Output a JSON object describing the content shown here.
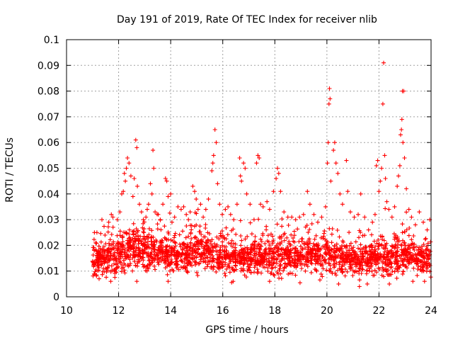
{
  "chart_data": {
    "type": "scatter",
    "title": "Day 191 of 2019, Rate Of TEC Index for receiver nlib",
    "xlabel": "GPS time / hours",
    "ylabel": "ROTI / TECUs",
    "xlim": [
      10,
      24
    ],
    "ylim": [
      0,
      0.1
    ],
    "xticks": [
      10,
      12,
      14,
      16,
      18,
      20,
      22,
      24
    ],
    "yticks": [
      0,
      0.01,
      0.02,
      0.03,
      0.04,
      0.05,
      0.06,
      0.07,
      0.08,
      0.09,
      0.1
    ],
    "grid": true,
    "marker": "+",
    "color": "#ff0000",
    "series": [
      {
        "name": "ROTI",
        "baseline_profile": [
          [
            11.0,
            0.014,
            0.005
          ],
          [
            11.5,
            0.015,
            0.005
          ],
          [
            12.0,
            0.016,
            0.006
          ],
          [
            12.5,
            0.019,
            0.008
          ],
          [
            13.0,
            0.018,
            0.007
          ],
          [
            13.5,
            0.017,
            0.006
          ],
          [
            14.0,
            0.016,
            0.005
          ],
          [
            14.5,
            0.017,
            0.006
          ],
          [
            15.0,
            0.018,
            0.006
          ],
          [
            15.5,
            0.017,
            0.006
          ],
          [
            16.0,
            0.016,
            0.006
          ],
          [
            16.5,
            0.015,
            0.005
          ],
          [
            17.0,
            0.015,
            0.005
          ],
          [
            17.5,
            0.016,
            0.005
          ],
          [
            18.0,
            0.016,
            0.006
          ],
          [
            18.5,
            0.016,
            0.006
          ],
          [
            19.0,
            0.016,
            0.006
          ],
          [
            19.5,
            0.017,
            0.006
          ],
          [
            20.0,
            0.017,
            0.007
          ],
          [
            20.5,
            0.016,
            0.006
          ],
          [
            21.0,
            0.014,
            0.005
          ],
          [
            21.5,
            0.014,
            0.005
          ],
          [
            22.0,
            0.015,
            0.006
          ],
          [
            22.5,
            0.015,
            0.006
          ],
          [
            23.0,
            0.016,
            0.006
          ],
          [
            23.5,
            0.015,
            0.005
          ],
          [
            24.0,
            0.015,
            0.005
          ]
        ],
        "points": [
          [
            11.07,
            0.025
          ],
          [
            11.12,
            0.021
          ],
          [
            11.36,
            0.03
          ],
          [
            11.48,
            0.024
          ],
          [
            11.62,
            0.029
          ],
          [
            11.72,
            0.032
          ],
          [
            11.78,
            0.031
          ],
          [
            11.83,
            0.019
          ],
          [
            11.95,
            0.03
          ],
          [
            12.05,
            0.033
          ],
          [
            12.12,
            0.04
          ],
          [
            12.18,
            0.041
          ],
          [
            12.22,
            0.048
          ],
          [
            12.26,
            0.045
          ],
          [
            12.3,
            0.05
          ],
          [
            12.34,
            0.054
          ],
          [
            12.4,
            0.052
          ],
          [
            12.47,
            0.047
          ],
          [
            12.55,
            0.039
          ],
          [
            12.6,
            0.046
          ],
          [
            12.66,
            0.061
          ],
          [
            12.7,
            0.058
          ],
          [
            12.72,
            0.043
          ],
          [
            12.8,
            0.036
          ],
          [
            12.88,
            0.033
          ],
          [
            12.95,
            0.03
          ],
          [
            13.05,
            0.031
          ],
          [
            13.1,
            0.034
          ],
          [
            13.15,
            0.036
          ],
          [
            13.22,
            0.044
          ],
          [
            13.28,
            0.04
          ],
          [
            13.32,
            0.057
          ],
          [
            13.35,
            0.05
          ],
          [
            13.4,
            0.033
          ],
          [
            13.52,
            0.032
          ],
          [
            13.6,
            0.03
          ],
          [
            13.7,
            0.036
          ],
          [
            13.8,
            0.046
          ],
          [
            13.85,
            0.045
          ],
          [
            13.9,
            0.039
          ],
          [
            14.0,
            0.04
          ],
          [
            14.05,
            0.029
          ],
          [
            14.15,
            0.031
          ],
          [
            14.28,
            0.035
          ],
          [
            14.4,
            0.034
          ],
          [
            14.5,
            0.035
          ],
          [
            14.6,
            0.032
          ],
          [
            14.68,
            0.03
          ],
          [
            14.75,
            0.033
          ],
          [
            14.85,
            0.043
          ],
          [
            14.92,
            0.041
          ],
          [
            14.98,
            0.038
          ],
          [
            15.05,
            0.034
          ],
          [
            15.15,
            0.036
          ],
          [
            15.25,
            0.031
          ],
          [
            15.35,
            0.034
          ],
          [
            15.45,
            0.038
          ],
          [
            15.58,
            0.049
          ],
          [
            15.62,
            0.052
          ],
          [
            15.65,
            0.055
          ],
          [
            15.7,
            0.065
          ],
          [
            15.75,
            0.06
          ],
          [
            15.8,
            0.044
          ],
          [
            15.88,
            0.036
          ],
          [
            15.98,
            0.032
          ],
          [
            16.1,
            0.034
          ],
          [
            16.2,
            0.035
          ],
          [
            16.3,
            0.032
          ],
          [
            16.42,
            0.03
          ],
          [
            16.55,
            0.036
          ],
          [
            16.65,
            0.054
          ],
          [
            16.68,
            0.047
          ],
          [
            16.72,
            0.045
          ],
          [
            16.8,
            0.052
          ],
          [
            16.86,
            0.05
          ],
          [
            16.92,
            0.04
          ],
          [
            17.05,
            0.036
          ],
          [
            17.2,
            0.03
          ],
          [
            17.3,
            0.052
          ],
          [
            17.35,
            0.055
          ],
          [
            17.4,
            0.054
          ],
          [
            17.45,
            0.036
          ],
          [
            17.55,
            0.035
          ],
          [
            17.7,
            0.037
          ],
          [
            17.8,
            0.034
          ],
          [
            17.95,
            0.041
          ],
          [
            18.05,
            0.046
          ],
          [
            18.1,
            0.05
          ],
          [
            18.15,
            0.048
          ],
          [
            18.22,
            0.041
          ],
          [
            18.35,
            0.033
          ],
          [
            18.5,
            0.031
          ],
          [
            18.65,
            0.031
          ],
          [
            18.8,
            0.03
          ],
          [
            18.95,
            0.031
          ],
          [
            19.1,
            0.032
          ],
          [
            19.25,
            0.041
          ],
          [
            19.35,
            0.036
          ],
          [
            19.5,
            0.032
          ],
          [
            19.65,
            0.029
          ],
          [
            19.8,
            0.031
          ],
          [
            19.95,
            0.035
          ],
          [
            20.02,
            0.052
          ],
          [
            20.05,
            0.06
          ],
          [
            20.08,
            0.075
          ],
          [
            20.1,
            0.081
          ],
          [
            20.12,
            0.077
          ],
          [
            20.15,
            0.045
          ],
          [
            20.25,
            0.057
          ],
          [
            20.3,
            0.06
          ],
          [
            20.35,
            0.052
          ],
          [
            20.42,
            0.048
          ],
          [
            20.5,
            0.04
          ],
          [
            20.6,
            0.036
          ],
          [
            20.75,
            0.053
          ],
          [
            20.8,
            0.041
          ],
          [
            20.9,
            0.033
          ],
          [
            21.05,
            0.031
          ],
          [
            21.2,
            0.032
          ],
          [
            21.3,
            0.04
          ],
          [
            21.45,
            0.031
          ],
          [
            21.6,
            0.026
          ],
          [
            21.75,
            0.029
          ],
          [
            21.85,
            0.032
          ],
          [
            21.9,
            0.051
          ],
          [
            21.95,
            0.053
          ],
          [
            22.0,
            0.041
          ],
          [
            22.05,
            0.045
          ],
          [
            22.1,
            0.05
          ],
          [
            22.15,
            0.075
          ],
          [
            22.18,
            0.091
          ],
          [
            22.22,
            0.055
          ],
          [
            22.25,
            0.046
          ],
          [
            22.3,
            0.037
          ],
          [
            22.38,
            0.034
          ],
          [
            22.5,
            0.031
          ],
          [
            22.6,
            0.035
          ],
          [
            22.7,
            0.043
          ],
          [
            22.75,
            0.047
          ],
          [
            22.8,
            0.051
          ],
          [
            22.83,
            0.063
          ],
          [
            22.86,
            0.065
          ],
          [
            22.88,
            0.069
          ],
          [
            22.9,
            0.08
          ],
          [
            22.95,
            0.08
          ],
          [
            22.92,
            0.06
          ],
          [
            22.98,
            0.054
          ],
          [
            23.05,
            0.042
          ],
          [
            23.15,
            0.034
          ],
          [
            23.25,
            0.031
          ],
          [
            23.4,
            0.028
          ],
          [
            23.55,
            0.033
          ],
          [
            23.7,
            0.029
          ],
          [
            23.85,
            0.026
          ],
          [
            23.95,
            0.03
          ],
          [
            11.25,
            0.007
          ],
          [
            11.7,
            0.006
          ],
          [
            12.7,
            0.006
          ],
          [
            13.9,
            0.006
          ],
          [
            16.4,
            0.006
          ],
          [
            17.8,
            0.006
          ],
          [
            20.45,
            0.005
          ],
          [
            21.25,
            0.004
          ],
          [
            21.55,
            0.005
          ],
          [
            22.4,
            0.005
          ],
          [
            23.3,
            0.006
          ],
          [
            23.75,
            0.006
          ]
        ]
      }
    ]
  }
}
